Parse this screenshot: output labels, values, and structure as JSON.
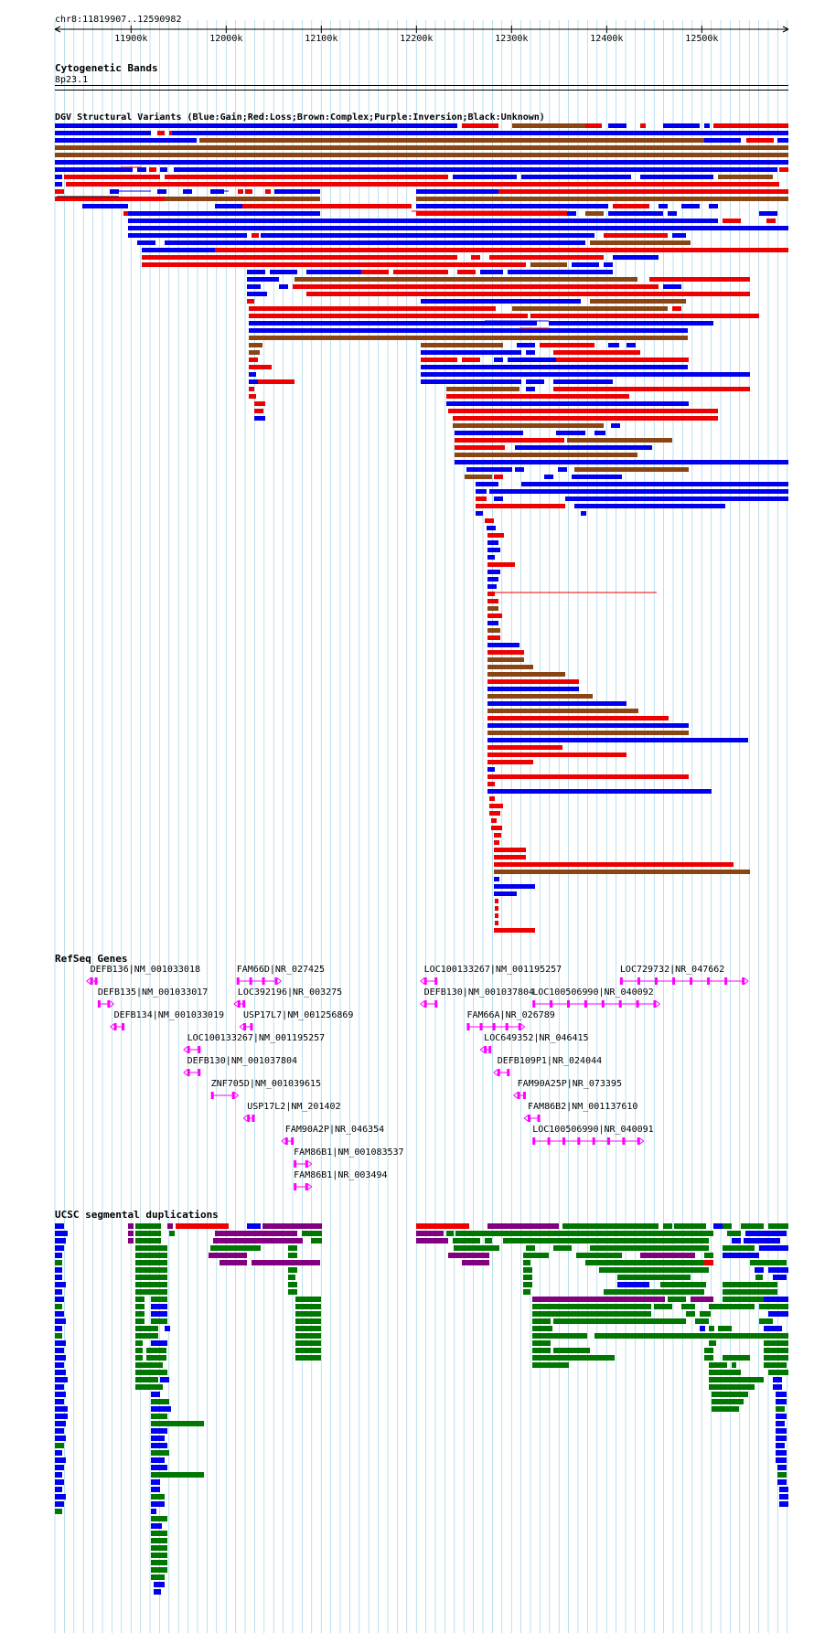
{
  "colors": {
    "gain": "#0000ee",
    "loss": "#ee0000",
    "complex": "#8b4513",
    "inversion": "#800080",
    "unknown": "#000000",
    "refseq": "#ff00ff",
    "segdup_green": "#007700",
    "grid": "#8ecbe4"
  },
  "view": {
    "location": "chr8:11819907..12590982",
    "scale_start": 11819907,
    "scale_end": 12590982,
    "ticks": [
      {
        "pos": 11900000,
        "label": "11900k"
      },
      {
        "pos": 12000000,
        "label": "12000k"
      },
      {
        "pos": 12100000,
        "label": "12100k"
      },
      {
        "pos": 12200000,
        "label": "12200k"
      },
      {
        "pos": 12300000,
        "label": "12300k"
      },
      {
        "pos": 12400000,
        "label": "12400k"
      },
      {
        "pos": 12500000,
        "label": "12500k"
      }
    ]
  },
  "tracks": {
    "cytoband": {
      "title": "Cytogenetic Bands",
      "band": "8p23.1"
    },
    "dgv": {
      "title": "DGV Structural Variants (Blue:Gain;Red:Loss;Brown:Complex;Purple:Inversion;Black:Unknown)"
    },
    "refseq": {
      "title": "RefSeq Genes",
      "genes": [
        {
          "label": "DEFB136|NM_001033018",
          "start": 11857000,
          "end": 11862000,
          "strand": "-",
          "row": 0
        },
        {
          "label": "FAM66D|NR_027425",
          "start": 12011000,
          "end": 12054000,
          "strand": "+",
          "row": 0
        },
        {
          "label": "LOC100133267|NM_001195257",
          "start": 12208000,
          "end": 12222000,
          "strand": "-",
          "row": 0
        },
        {
          "label": "LOC729732|NR_047662",
          "start": 12414000,
          "end": 12545000,
          "strand": "+",
          "row": 0
        },
        {
          "label": "DEFB135|NM_001033017",
          "start": 11865000,
          "end": 11878000,
          "strand": "+",
          "row": 1
        },
        {
          "label": "LOC392196|NR_003275",
          "start": 12012000,
          "end": 12020000,
          "strand": "-",
          "row": 1
        },
        {
          "label": "DEFB130|NM_001037804",
          "start": 12208000,
          "end": 12222000,
          "strand": "-",
          "row": 1
        },
        {
          "label": "LOC100506990|NR_040092",
          "start": 12322000,
          "end": 12452000,
          "strand": "+",
          "row": 1
        },
        {
          "label": "DEFB134|NM_001033019",
          "start": 11882000,
          "end": 11893000,
          "strand": "-",
          "row": 2
        },
        {
          "label": "USP17L7|NM_001256869",
          "start": 12018000,
          "end": 12028000,
          "strand": "-",
          "row": 2
        },
        {
          "label": "FAM66A|NR_026789",
          "start": 12253000,
          "end": 12310000,
          "strand": "+",
          "row": 2
        },
        {
          "label": "LOC100133267|NM_001195257",
          "start": 11959000,
          "end": 11973000,
          "strand": "-",
          "row": 3
        },
        {
          "label": "LOC649352|NR_046415",
          "start": 12271000,
          "end": 12277000,
          "strand": "-",
          "row": 3
        },
        {
          "label": "DEFB130|NM_001037804",
          "start": 11959000,
          "end": 11973000,
          "strand": "-",
          "row": 4
        },
        {
          "label": "DEFB109P1|NR_024044",
          "start": 12285000,
          "end": 12298000,
          "strand": "-",
          "row": 4
        },
        {
          "label": "ZNF705D|NM_001039615",
          "start": 11984000,
          "end": 12009000,
          "strand": "+",
          "row": 5
        },
        {
          "label": "FAM90A25P|NR_073395",
          "start": 12306000,
          "end": 12315000,
          "strand": "-",
          "row": 5
        },
        {
          "label": "USP17L2|NM_201402",
          "start": 12022000,
          "end": 12030000,
          "strand": "-",
          "row": 6
        },
        {
          "label": "FAM86B2|NM_001137610",
          "start": 12317000,
          "end": 12330000,
          "strand": "-",
          "row": 6
        },
        {
          "label": "FAM90A2P|NR_046354",
          "start": 12062000,
          "end": 12071000,
          "strand": "-",
          "row": 7
        },
        {
          "label": "LOC100506990|NR_040091",
          "start": 12322000,
          "end": 12435000,
          "strand": "+",
          "row": 7
        },
        {
          "label": "FAM86B1|NM_001083537",
          "start": 12071000,
          "end": 12086000,
          "strand": "+",
          "row": 8
        },
        {
          "label": "FAM86B1|NR_003494",
          "start": 12071000,
          "end": 12086000,
          "strand": "+",
          "row": 9
        }
      ]
    },
    "segdup": {
      "title": "UCSC segmental duplications"
    }
  }
}
